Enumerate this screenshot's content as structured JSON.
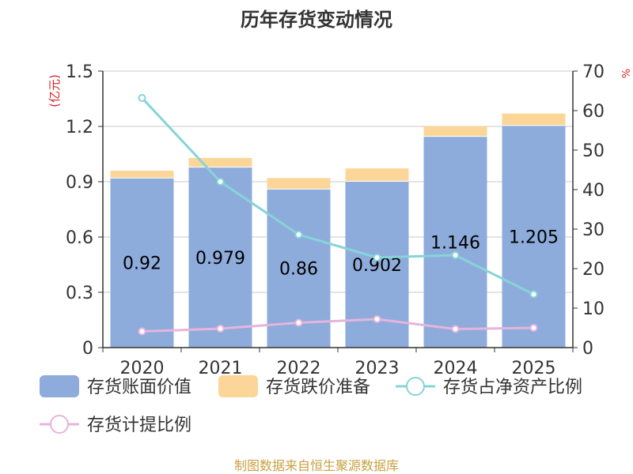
{
  "chart_data": {
    "type": "bar",
    "title": "历年存货变动情况",
    "categories": [
      "2020",
      "2021",
      "2022",
      "2023",
      "2024",
      "2025"
    ],
    "left_axis": {
      "label": "(亿元)",
      "range": [
        0,
        1.5
      ],
      "ticks": [
        "0",
        "0.3",
        "0.6",
        "0.9",
        "1.2",
        "1.5"
      ]
    },
    "right_axis": {
      "label": "%",
      "range": [
        0,
        70
      ],
      "ticks": [
        "0",
        "10",
        "20",
        "30",
        "40",
        "50",
        "60",
        "70"
      ]
    },
    "series": [
      {
        "name": "存货账面价值",
        "kind": "bar",
        "axis": "left",
        "color": "#8eacdb",
        "values": [
          0.92,
          0.979,
          0.86,
          0.902,
          1.146,
          1.205
        ],
        "labels": [
          "0.92",
          "0.979",
          "0.86",
          "0.902",
          "1.146",
          "1.205"
        ]
      },
      {
        "name": "存货跌价准备",
        "kind": "bar-stacked",
        "axis": "left",
        "color": "#fcd699",
        "values": [
          0.04,
          0.05,
          0.06,
          0.07,
          0.055,
          0.065
        ]
      },
      {
        "name": "存货占净资产比例",
        "kind": "line",
        "axis": "right",
        "color": "#86d4d8",
        "values": [
          63.2,
          42.0,
          28.6,
          22.8,
          23.4,
          13.5
        ]
      },
      {
        "name": "存货计提比例",
        "kind": "line",
        "axis": "right",
        "color": "#e6b4dc",
        "values": [
          4.1,
          4.8,
          6.3,
          7.2,
          4.7,
          5.0
        ]
      }
    ],
    "grid": true,
    "legend_position": "bottom"
  },
  "footer": {
    "source": "制图数据来自恒生聚源数据库"
  }
}
